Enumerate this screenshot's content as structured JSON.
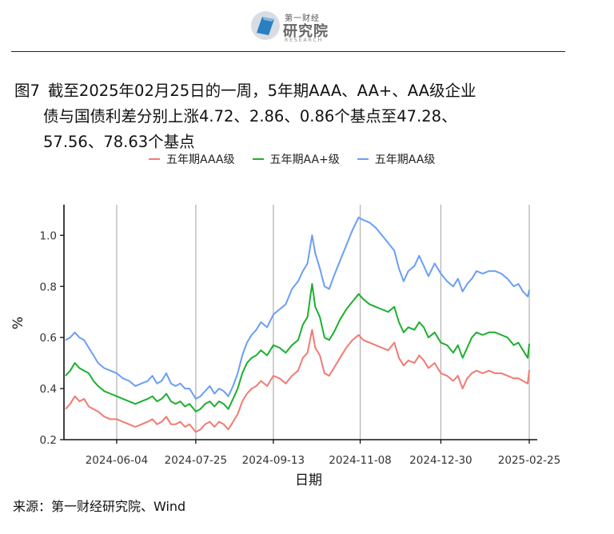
{
  "logo": {
    "small_text": "第一财经",
    "big_text": "研究院",
    "tiny_text": "RESEARCH"
  },
  "title": {
    "number": "图7",
    "line1": "截至2025年02月25日的一周，5年期AAA、AA+、AA级企业",
    "line2": "债与国债利差分别上涨4.72、2.86、0.86个基点至47.28、",
    "line3": "57.56、78.63个基点"
  },
  "source": "来源：第一财经研究院、Wind",
  "chart_data": {
    "type": "line",
    "xlabel": "日期",
    "ylabel": "%",
    "x_range": [
      "2024-05-01",
      "2025-02-25"
    ],
    "xticks": [
      "2024-06-04",
      "2024-07-25",
      "2024-09-13",
      "2024-11-08",
      "2024-12-30",
      "2025-02-25"
    ],
    "ylim": [
      0.2,
      1.12
    ],
    "yticks": [
      0.2,
      0.4,
      0.6,
      0.8,
      1.0
    ],
    "ytick_labels": [
      "0.2",
      "0.4",
      "0.6",
      "0.8",
      "1.0"
    ],
    "grid": "vertical",
    "legend": "top",
    "series": [
      {
        "name": "五年期AAA级",
        "color": "#F07B72",
        "points": [
          [
            "2024-05-02",
            0.32
          ],
          [
            "2024-05-05",
            0.34
          ],
          [
            "2024-05-08",
            0.37
          ],
          [
            "2024-05-11",
            0.35
          ],
          [
            "2024-05-14",
            0.36
          ],
          [
            "2024-05-17",
            0.33
          ],
          [
            "2024-05-20",
            0.32
          ],
          [
            "2024-05-23",
            0.31
          ],
          [
            "2024-05-27",
            0.29
          ],
          [
            "2024-05-31",
            0.28
          ],
          [
            "2024-06-04",
            0.28
          ],
          [
            "2024-06-08",
            0.27
          ],
          [
            "2024-06-12",
            0.26
          ],
          [
            "2024-06-16",
            0.25
          ],
          [
            "2024-06-20",
            0.26
          ],
          [
            "2024-06-24",
            0.27
          ],
          [
            "2024-06-27",
            0.28
          ],
          [
            "2024-06-30",
            0.26
          ],
          [
            "2024-07-03",
            0.27
          ],
          [
            "2024-07-06",
            0.29
          ],
          [
            "2024-07-09",
            0.26
          ],
          [
            "2024-07-12",
            0.26
          ],
          [
            "2024-07-15",
            0.27
          ],
          [
            "2024-07-18",
            0.25
          ],
          [
            "2024-07-21",
            0.26
          ],
          [
            "2024-07-25",
            0.23
          ],
          [
            "2024-07-28",
            0.24
          ],
          [
            "2024-07-31",
            0.26
          ],
          [
            "2024-08-03",
            0.27
          ],
          [
            "2024-08-06",
            0.25
          ],
          [
            "2024-08-09",
            0.27
          ],
          [
            "2024-08-12",
            0.26
          ],
          [
            "2024-08-15",
            0.24
          ],
          [
            "2024-08-18",
            0.27
          ],
          [
            "2024-08-21",
            0.3
          ],
          [
            "2024-08-24",
            0.35
          ],
          [
            "2024-08-27",
            0.38
          ],
          [
            "2024-08-30",
            0.4
          ],
          [
            "2024-09-02",
            0.41
          ],
          [
            "2024-09-05",
            0.43
          ],
          [
            "2024-09-09",
            0.41
          ],
          [
            "2024-09-13",
            0.45
          ],
          [
            "2024-09-17",
            0.44
          ],
          [
            "2024-09-21",
            0.42
          ],
          [
            "2024-09-25",
            0.45
          ],
          [
            "2024-09-29",
            0.47
          ],
          [
            "2024-10-02",
            0.52
          ],
          [
            "2024-10-05",
            0.54
          ],
          [
            "2024-10-08",
            0.63
          ],
          [
            "2024-10-10",
            0.56
          ],
          [
            "2024-10-13",
            0.53
          ],
          [
            "2024-10-16",
            0.46
          ],
          [
            "2024-10-19",
            0.45
          ],
          [
            "2024-10-22",
            0.48
          ],
          [
            "2024-10-26",
            0.52
          ],
          [
            "2024-10-30",
            0.56
          ],
          [
            "2024-11-03",
            0.59
          ],
          [
            "2024-11-07",
            0.61
          ],
          [
            "2024-11-10",
            0.59
          ],
          [
            "2024-11-14",
            0.58
          ],
          [
            "2024-11-18",
            0.57
          ],
          [
            "2024-11-22",
            0.56
          ],
          [
            "2024-11-26",
            0.55
          ],
          [
            "2024-11-30",
            0.58
          ],
          [
            "2024-12-03",
            0.52
          ],
          [
            "2024-12-06",
            0.49
          ],
          [
            "2024-12-09",
            0.51
          ],
          [
            "2024-12-13",
            0.5
          ],
          [
            "2024-12-16",
            0.53
          ],
          [
            "2024-12-19",
            0.51
          ],
          [
            "2024-12-22",
            0.48
          ],
          [
            "2024-12-26",
            0.5
          ],
          [
            "2024-12-30",
            0.46
          ],
          [
            "2025-01-03",
            0.45
          ],
          [
            "2025-01-07",
            0.43
          ],
          [
            "2025-01-10",
            0.45
          ],
          [
            "2025-01-13",
            0.4
          ],
          [
            "2025-01-16",
            0.44
          ],
          [
            "2025-01-19",
            0.46
          ],
          [
            "2025-01-22",
            0.47
          ],
          [
            "2025-01-26",
            0.46
          ],
          [
            "2025-01-30",
            0.47
          ],
          [
            "2025-02-03",
            0.46
          ],
          [
            "2025-02-07",
            0.46
          ],
          [
            "2025-02-11",
            0.45
          ],
          [
            "2025-02-15",
            0.44
          ],
          [
            "2025-02-18",
            0.44
          ],
          [
            "2025-02-21",
            0.43
          ],
          [
            "2025-02-24",
            0.42
          ],
          [
            "2025-02-25",
            0.4728
          ]
        ]
      },
      {
        "name": "五年期AA+级",
        "color": "#1DAF2E",
        "points": [
          [
            "2024-05-02",
            0.45
          ],
          [
            "2024-05-05",
            0.47
          ],
          [
            "2024-05-08",
            0.5
          ],
          [
            "2024-05-11",
            0.48
          ],
          [
            "2024-05-14",
            0.47
          ],
          [
            "2024-05-17",
            0.46
          ],
          [
            "2024-05-20",
            0.43
          ],
          [
            "2024-05-23",
            0.41
          ],
          [
            "2024-05-27",
            0.39
          ],
          [
            "2024-05-31",
            0.38
          ],
          [
            "2024-06-04",
            0.37
          ],
          [
            "2024-06-08",
            0.36
          ],
          [
            "2024-06-12",
            0.35
          ],
          [
            "2024-06-16",
            0.34
          ],
          [
            "2024-06-20",
            0.35
          ],
          [
            "2024-06-24",
            0.36
          ],
          [
            "2024-06-27",
            0.37
          ],
          [
            "2024-06-30",
            0.35
          ],
          [
            "2024-07-03",
            0.36
          ],
          [
            "2024-07-06",
            0.38
          ],
          [
            "2024-07-09",
            0.35
          ],
          [
            "2024-07-12",
            0.34
          ],
          [
            "2024-07-15",
            0.35
          ],
          [
            "2024-07-18",
            0.33
          ],
          [
            "2024-07-21",
            0.34
          ],
          [
            "2024-07-25",
            0.31
          ],
          [
            "2024-07-28",
            0.32
          ],
          [
            "2024-07-31",
            0.34
          ],
          [
            "2024-08-03",
            0.35
          ],
          [
            "2024-08-06",
            0.33
          ],
          [
            "2024-08-09",
            0.35
          ],
          [
            "2024-08-12",
            0.34
          ],
          [
            "2024-08-15",
            0.32
          ],
          [
            "2024-08-18",
            0.36
          ],
          [
            "2024-08-21",
            0.4
          ],
          [
            "2024-08-24",
            0.46
          ],
          [
            "2024-08-27",
            0.5
          ],
          [
            "2024-08-30",
            0.52
          ],
          [
            "2024-09-02",
            0.53
          ],
          [
            "2024-09-05",
            0.55
          ],
          [
            "2024-09-09",
            0.53
          ],
          [
            "2024-09-13",
            0.57
          ],
          [
            "2024-09-17",
            0.56
          ],
          [
            "2024-09-21",
            0.54
          ],
          [
            "2024-09-25",
            0.57
          ],
          [
            "2024-09-29",
            0.59
          ],
          [
            "2024-10-02",
            0.65
          ],
          [
            "2024-10-05",
            0.68
          ],
          [
            "2024-10-08",
            0.81
          ],
          [
            "2024-10-10",
            0.72
          ],
          [
            "2024-10-13",
            0.68
          ],
          [
            "2024-10-16",
            0.6
          ],
          [
            "2024-10-19",
            0.59
          ],
          [
            "2024-10-22",
            0.62
          ],
          [
            "2024-10-26",
            0.67
          ],
          [
            "2024-10-30",
            0.71
          ],
          [
            "2024-11-03",
            0.74
          ],
          [
            "2024-11-07",
            0.77
          ],
          [
            "2024-11-10",
            0.75
          ],
          [
            "2024-11-14",
            0.73
          ],
          [
            "2024-11-18",
            0.72
          ],
          [
            "2024-11-22",
            0.71
          ],
          [
            "2024-11-26",
            0.7
          ],
          [
            "2024-11-30",
            0.72
          ],
          [
            "2024-12-03",
            0.66
          ],
          [
            "2024-12-06",
            0.62
          ],
          [
            "2024-12-09",
            0.64
          ],
          [
            "2024-12-13",
            0.63
          ],
          [
            "2024-12-16",
            0.66
          ],
          [
            "2024-12-19",
            0.64
          ],
          [
            "2024-12-22",
            0.6
          ],
          [
            "2024-12-26",
            0.62
          ],
          [
            "2024-12-30",
            0.58
          ],
          [
            "2025-01-03",
            0.57
          ],
          [
            "2025-01-07",
            0.54
          ],
          [
            "2025-01-10",
            0.57
          ],
          [
            "2025-01-13",
            0.52
          ],
          [
            "2025-01-16",
            0.56
          ],
          [
            "2025-01-19",
            0.6
          ],
          [
            "2025-01-22",
            0.62
          ],
          [
            "2025-01-26",
            0.61
          ],
          [
            "2025-01-30",
            0.62
          ],
          [
            "2025-02-03",
            0.62
          ],
          [
            "2025-02-07",
            0.61
          ],
          [
            "2025-02-11",
            0.6
          ],
          [
            "2025-02-15",
            0.57
          ],
          [
            "2025-02-18",
            0.58
          ],
          [
            "2025-02-21",
            0.55
          ],
          [
            "2025-02-24",
            0.52
          ],
          [
            "2025-02-25",
            0.5756
          ]
        ]
      },
      {
        "name": "五年期AA级",
        "color": "#6A9EF5",
        "points": [
          [
            "2024-05-02",
            0.59
          ],
          [
            "2024-05-05",
            0.6
          ],
          [
            "2024-05-08",
            0.62
          ],
          [
            "2024-05-11",
            0.6
          ],
          [
            "2024-05-14",
            0.59
          ],
          [
            "2024-05-17",
            0.56
          ],
          [
            "2024-05-20",
            0.53
          ],
          [
            "2024-05-23",
            0.5
          ],
          [
            "2024-05-27",
            0.48
          ],
          [
            "2024-05-31",
            0.47
          ],
          [
            "2024-06-04",
            0.46
          ],
          [
            "2024-06-08",
            0.44
          ],
          [
            "2024-06-12",
            0.43
          ],
          [
            "2024-06-16",
            0.41
          ],
          [
            "2024-06-20",
            0.42
          ],
          [
            "2024-06-24",
            0.43
          ],
          [
            "2024-06-27",
            0.45
          ],
          [
            "2024-06-30",
            0.42
          ],
          [
            "2024-07-03",
            0.43
          ],
          [
            "2024-07-06",
            0.46
          ],
          [
            "2024-07-09",
            0.42
          ],
          [
            "2024-07-12",
            0.41
          ],
          [
            "2024-07-15",
            0.42
          ],
          [
            "2024-07-18",
            0.4
          ],
          [
            "2024-07-21",
            0.4
          ],
          [
            "2024-07-25",
            0.36
          ],
          [
            "2024-07-28",
            0.37
          ],
          [
            "2024-07-31",
            0.39
          ],
          [
            "2024-08-03",
            0.41
          ],
          [
            "2024-08-06",
            0.38
          ],
          [
            "2024-08-09",
            0.4
          ],
          [
            "2024-08-12",
            0.39
          ],
          [
            "2024-08-15",
            0.37
          ],
          [
            "2024-08-18",
            0.41
          ],
          [
            "2024-08-21",
            0.46
          ],
          [
            "2024-08-24",
            0.53
          ],
          [
            "2024-08-27",
            0.58
          ],
          [
            "2024-08-30",
            0.61
          ],
          [
            "2024-09-02",
            0.63
          ],
          [
            "2024-09-05",
            0.66
          ],
          [
            "2024-09-09",
            0.64
          ],
          [
            "2024-09-13",
            0.69
          ],
          [
            "2024-09-17",
            0.71
          ],
          [
            "2024-09-21",
            0.73
          ],
          [
            "2024-09-25",
            0.79
          ],
          [
            "2024-09-29",
            0.82
          ],
          [
            "2024-10-02",
            0.86
          ],
          [
            "2024-10-05",
            0.89
          ],
          [
            "2024-10-08",
            1.0
          ],
          [
            "2024-10-10",
            0.93
          ],
          [
            "2024-10-13",
            0.87
          ],
          [
            "2024-10-16",
            0.8
          ],
          [
            "2024-10-19",
            0.79
          ],
          [
            "2024-10-22",
            0.84
          ],
          [
            "2024-10-26",
            0.9
          ],
          [
            "2024-10-30",
            0.96
          ],
          [
            "2024-11-03",
            1.02
          ],
          [
            "2024-11-07",
            1.07
          ],
          [
            "2024-11-10",
            1.06
          ],
          [
            "2024-11-14",
            1.05
          ],
          [
            "2024-11-18",
            1.03
          ],
          [
            "2024-11-22",
            1.0
          ],
          [
            "2024-11-26",
            0.97
          ],
          [
            "2024-11-30",
            0.94
          ],
          [
            "2024-12-03",
            0.87
          ],
          [
            "2024-12-06",
            0.82
          ],
          [
            "2024-12-09",
            0.86
          ],
          [
            "2024-12-13",
            0.88
          ],
          [
            "2024-12-16",
            0.92
          ],
          [
            "2024-12-19",
            0.88
          ],
          [
            "2024-12-22",
            0.84
          ],
          [
            "2024-12-26",
            0.89
          ],
          [
            "2024-12-30",
            0.85
          ],
          [
            "2025-01-03",
            0.82
          ],
          [
            "2025-01-07",
            0.8
          ],
          [
            "2025-01-10",
            0.83
          ],
          [
            "2025-01-13",
            0.78
          ],
          [
            "2025-01-16",
            0.81
          ],
          [
            "2025-01-19",
            0.83
          ],
          [
            "2025-01-22",
            0.86
          ],
          [
            "2025-01-26",
            0.85
          ],
          [
            "2025-01-30",
            0.86
          ],
          [
            "2025-02-03",
            0.86
          ],
          [
            "2025-02-07",
            0.85
          ],
          [
            "2025-02-11",
            0.83
          ],
          [
            "2025-02-15",
            0.8
          ],
          [
            "2025-02-18",
            0.81
          ],
          [
            "2025-02-21",
            0.78
          ],
          [
            "2025-02-24",
            0.76
          ],
          [
            "2025-02-25",
            0.7863
          ]
        ]
      }
    ]
  }
}
